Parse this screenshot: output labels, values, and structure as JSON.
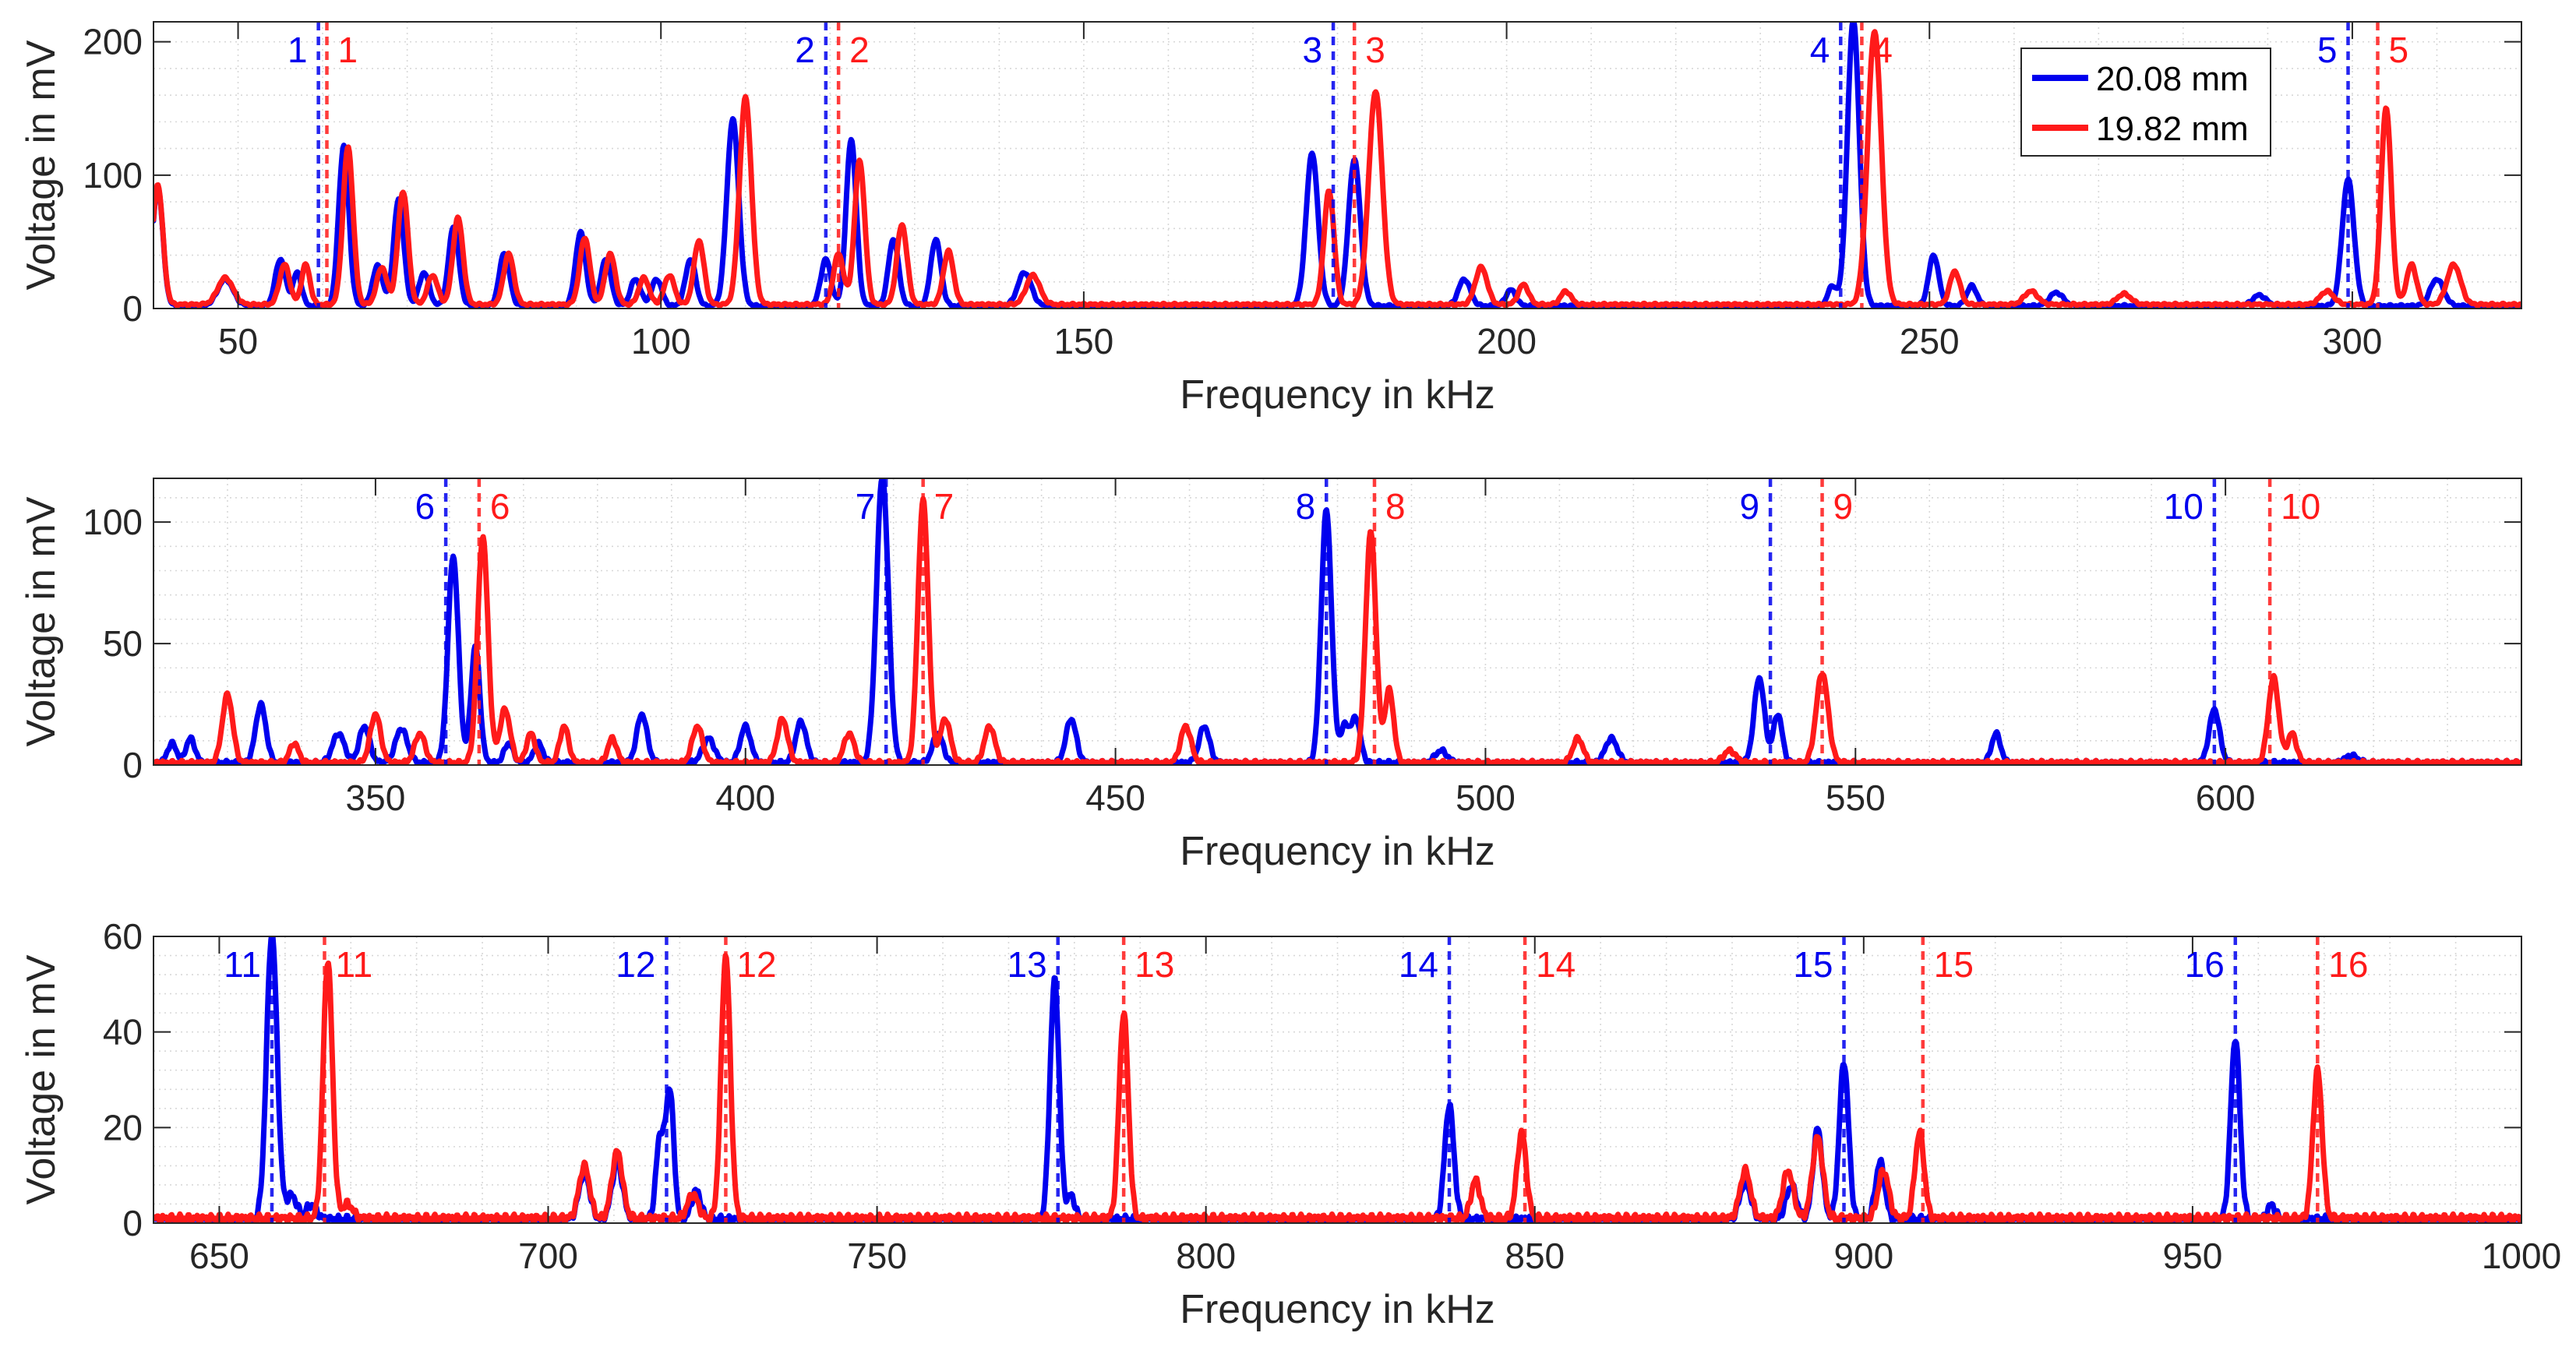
{
  "colors": {
    "blue": "#0000ee",
    "red": "#ff1a1a",
    "grid": "#d8d8d8",
    "axis": "#262626"
  },
  "legend": {
    "entries": [
      "20.08 mm",
      "19.82 mm"
    ]
  },
  "chart_data": [
    {
      "type": "line",
      "panel": 1,
      "xlabel": "Frequency in kHz",
      "ylabel": "Voltage in mV",
      "xlim": [
        40,
        320
      ],
      "ylim": [
        0,
        215
      ],
      "xticks": [
        50,
        100,
        150,
        200,
        250,
        300
      ],
      "xtick_labels": [
        "50",
        "100",
        "150",
        "200",
        "250",
        "300"
      ],
      "yticks": [
        0,
        100,
        200
      ],
      "ytick_labels": [
        "0",
        "100",
        "200"
      ],
      "grid": true,
      "legend": "top-right",
      "series": [
        {
          "name": "20.08 mm",
          "color": "blue",
          "baseline": 2,
          "peaks": [
            [
              40.5,
              90,
              0.6
            ],
            [
              48.5,
              20,
              0.9
            ],
            [
              55,
              35,
              0.6
            ],
            [
              57,
              25,
              0.5
            ],
            [
              62.5,
              120,
              0.6
            ],
            [
              66.5,
              30,
              0.6
            ],
            [
              69,
              80,
              0.6
            ],
            [
              72,
              25,
              0.6
            ],
            [
              75.5,
              60,
              0.6
            ],
            [
              81.5,
              40,
              0.6
            ],
            [
              90.5,
              55,
              0.6
            ],
            [
              93.5,
              35,
              0.6
            ],
            [
              97,
              20,
              0.6
            ],
            [
              99.5,
              20,
              0.6
            ],
            [
              103.5,
              35,
              0.6
            ],
            [
              108.5,
              140,
              0.7
            ],
            [
              119.5,
              35,
              0.6
            ],
            [
              122.5,
              125,
              0.6
            ],
            [
              127.5,
              50,
              0.6
            ],
            [
              132.5,
              50,
              0.6
            ],
            [
              143,
              25,
              0.8
            ],
            [
              177,
              115,
              0.7
            ],
            [
              182,
              110,
              0.7
            ],
            [
              195,
              20,
              0.7
            ],
            [
              200.5,
              12,
              0.6
            ],
            [
              238.5,
              15,
              0.5
            ],
            [
              241,
              215,
              0.7
            ],
            [
              250.5,
              38,
              0.6
            ],
            [
              255,
              15,
              0.6
            ],
            [
              265,
              10,
              0.8
            ],
            [
              289,
              8,
              0.8
            ],
            [
              299.5,
              95,
              0.7
            ],
            [
              310,
              20,
              0.8
            ]
          ]
        },
        {
          "name": "19.82 mm",
          "color": "red",
          "baseline": 3,
          "peaks": [
            [
              40.5,
              90,
              0.6
            ],
            [
              48.5,
              20,
              0.9
            ],
            [
              55.5,
              30,
              0.6
            ],
            [
              58,
              30,
              0.5
            ],
            [
              63,
              118,
              0.6
            ],
            [
              67,
              28,
              0.6
            ],
            [
              69.5,
              85,
              0.6
            ],
            [
              73,
              22,
              0.6
            ],
            [
              76,
              65,
              0.6
            ],
            [
              82,
              38,
              0.6
            ],
            [
              91,
              50,
              0.6
            ],
            [
              94,
              38,
              0.6
            ],
            [
              98,
              20,
              0.6
            ],
            [
              101,
              22,
              0.6
            ],
            [
              104.5,
              48,
              0.6
            ],
            [
              110,
              155,
              0.7
            ],
            [
              121,
              38,
              0.6
            ],
            [
              123.5,
              108,
              0.6
            ],
            [
              128.5,
              60,
              0.6
            ],
            [
              134,
              40,
              0.6
            ],
            [
              144,
              22,
              0.8
            ],
            [
              179,
              85,
              0.6
            ],
            [
              184.5,
              160,
              0.8
            ],
            [
              197,
              28,
              0.7
            ],
            [
              202,
              15,
              0.6
            ],
            [
              207,
              10,
              0.6
            ],
            [
              243.5,
              205,
              0.8
            ],
            [
              253,
              25,
              0.6
            ],
            [
              262,
              10,
              0.8
            ],
            [
              273,
              8,
              0.8
            ],
            [
              297,
              10,
              0.8
            ],
            [
              304,
              148,
              0.6
            ],
            [
              307,
              30,
              0.6
            ],
            [
              312,
              30,
              0.8
            ]
          ]
        }
      ],
      "markers": [
        {
          "label": "1",
          "color": "blue",
          "x": 59.5
        },
        {
          "label": "1",
          "color": "red",
          "x": 60.5
        },
        {
          "label": "2",
          "color": "blue",
          "x": 119.5
        },
        {
          "label": "2",
          "color": "red",
          "x": 121
        },
        {
          "label": "3",
          "color": "blue",
          "x": 179.5
        },
        {
          "label": "3",
          "color": "red",
          "x": 182
        },
        {
          "label": "4",
          "color": "blue",
          "x": 239.5
        },
        {
          "label": "4",
          "color": "red",
          "x": 242
        },
        {
          "label": "5",
          "color": "blue",
          "x": 299.5
        },
        {
          "label": "5",
          "color": "red",
          "x": 303
        }
      ]
    },
    {
      "type": "line",
      "panel": 2,
      "xlabel": "Frequency in kHz",
      "ylabel": "Voltage in mV",
      "xlim": [
        320,
        640
      ],
      "ylim": [
        0,
        118
      ],
      "xticks": [
        350,
        400,
        450,
        500,
        550,
        600
      ],
      "xtick_labels": [
        "350",
        "400",
        "450",
        "500",
        "550",
        "600"
      ],
      "yticks": [
        0,
        50,
        100
      ],
      "ytick_labels": [
        "0",
        "50",
        "100"
      ],
      "grid": true,
      "series": [
        {
          "name": "20.08 mm",
          "color": "blue",
          "baseline": 1,
          "peaks": [
            [
              322.5,
              8,
              0.6
            ],
            [
              325,
              10,
              0.6
            ],
            [
              334.5,
              24,
              0.7
            ],
            [
              345,
              12,
              0.8
            ],
            [
              348.5,
              15,
              0.7
            ],
            [
              353.5,
              14,
              0.8
            ],
            [
              360.5,
              85,
              0.7
            ],
            [
              363.5,
              48,
              0.6
            ],
            [
              368,
              8,
              0.6
            ],
            [
              372,
              8,
              0.6
            ],
            [
              386,
              20,
              0.7
            ],
            [
              395,
              10,
              0.8
            ],
            [
              400,
              15,
              0.7
            ],
            [
              407.5,
              17,
              0.7
            ],
            [
              418.5,
              118,
              0.8
            ],
            [
              426,
              12,
              0.7
            ],
            [
              444,
              18,
              0.7
            ],
            [
              462,
              15,
              0.7
            ],
            [
              478.5,
              104,
              0.7
            ],
            [
              481,
              15,
              0.6
            ],
            [
              482.5,
              18,
              0.6
            ],
            [
              494,
              5,
              0.8
            ],
            [
              517,
              10,
              0.8
            ],
            [
              537,
              35,
              0.7
            ],
            [
              539.5,
              20,
              0.6
            ],
            [
              569,
              12,
              0.6
            ],
            [
              598.5,
              22,
              0.7
            ],
            [
              617,
              3,
              0.8
            ]
          ]
        },
        {
          "name": "19.82 mm",
          "color": "red",
          "baseline": 1,
          "peaks": [
            [
              330,
              28,
              0.7
            ],
            [
              339,
              8,
              0.6
            ],
            [
              350,
              20,
              0.7
            ],
            [
              356,
              12,
              0.7
            ],
            [
              364.5,
              93,
              0.7
            ],
            [
              367.5,
              22,
              0.7
            ],
            [
              371,
              12,
              0.6
            ],
            [
              375.5,
              15,
              0.6
            ],
            [
              382,
              10,
              0.6
            ],
            [
              393.5,
              15,
              0.7
            ],
            [
              405,
              18,
              0.7
            ],
            [
              414,
              12,
              0.7
            ],
            [
              424,
              108,
              0.7
            ],
            [
              427,
              18,
              0.7
            ],
            [
              433,
              15,
              0.7
            ],
            [
              459.5,
              15,
              0.7
            ],
            [
              484.5,
              95,
              0.7
            ],
            [
              487,
              30,
              0.6
            ],
            [
              512.5,
              10,
              0.7
            ],
            [
              533,
              5,
              0.8
            ],
            [
              545.5,
              37,
              0.8
            ],
            [
              606.5,
              35,
              0.7
            ],
            [
              609,
              12,
              0.6
            ]
          ]
        }
      ],
      "markers": [
        {
          "label": "6",
          "color": "blue",
          "x": 359.5
        },
        {
          "label": "6",
          "color": "red",
          "x": 364
        },
        {
          "label": "7",
          "color": "blue",
          "x": 419
        },
        {
          "label": "7",
          "color": "red",
          "x": 424
        },
        {
          "label": "8",
          "color": "blue",
          "x": 478.5
        },
        {
          "label": "8",
          "color": "red",
          "x": 485
        },
        {
          "label": "9",
          "color": "blue",
          "x": 538.5
        },
        {
          "label": "9",
          "color": "red",
          "x": 545.5
        },
        {
          "label": "10",
          "color": "blue",
          "x": 598.5
        },
        {
          "label": "10",
          "color": "red",
          "x": 606
        }
      ]
    },
    {
      "type": "line",
      "panel": 3,
      "xlabel": "Frequency in kHz",
      "ylabel": "Voltage in mV",
      "xlim": [
        640,
        1000
      ],
      "ylim": [
        0,
        60
      ],
      "xticks": [
        650,
        700,
        750,
        800,
        850,
        900,
        950,
        1000
      ],
      "xtick_labels": [
        "650",
        "700",
        "750",
        "800",
        "850",
        "900",
        "950",
        "1000"
      ],
      "yticks": [
        0,
        20,
        40,
        60
      ],
      "ytick_labels": [
        "0",
        "20",
        "40",
        "60"
      ],
      "grid": true,
      "series": [
        {
          "name": "20.08 mm",
          "color": "blue",
          "baseline": 0.8,
          "peaks": [
            [
              658,
              60,
              0.8
            ],
            [
              661,
              5,
              0.8
            ],
            [
              664,
              3,
              0.8
            ],
            [
              705.5,
              10,
              0.8
            ],
            [
              710.5,
              12,
              0.8
            ],
            [
              717,
              17,
              0.6
            ],
            [
              718.5,
              27,
              0.6
            ],
            [
              722.5,
              6,
              0.7
            ],
            [
              777,
              50,
              0.7
            ],
            [
              779.5,
              5,
              0.6
            ],
            [
              837,
              24,
              0.7
            ],
            [
              882,
              8,
              0.8
            ],
            [
              889,
              7,
              0.8
            ],
            [
              893,
              19,
              0.7
            ],
            [
              897,
              33,
              0.7
            ],
            [
              902.5,
              12,
              0.7
            ],
            [
              956.5,
              38,
              0.7
            ],
            [
              962,
              3,
              0.6
            ]
          ]
        },
        {
          "name": "19.82 mm",
          "color": "red",
          "baseline": 1,
          "peaks": [
            [
              666.5,
              54,
              0.7
            ],
            [
              669.5,
              3,
              0.8
            ],
            [
              705.5,
              11,
              0.8
            ],
            [
              710.5,
              14,
              0.8
            ],
            [
              722,
              5,
              0.8
            ],
            [
              727,
              55,
              0.7
            ],
            [
              787.5,
              43,
              0.7
            ],
            [
              841,
              8,
              0.7
            ],
            [
              848,
              18,
              0.7
            ],
            [
              882,
              10,
              0.8
            ],
            [
              888.5,
              10,
              0.8
            ],
            [
              893,
              17,
              0.8
            ],
            [
              903,
              10,
              0.8
            ],
            [
              908.5,
              18,
              0.7
            ],
            [
              969,
              31,
              0.7
            ]
          ]
        }
      ],
      "markers": [
        {
          "label": "11",
          "color": "blue",
          "x": 658
        },
        {
          "label": "11",
          "color": "red",
          "x": 666
        },
        {
          "label": "12",
          "color": "blue",
          "x": 718
        },
        {
          "label": "12",
          "color": "red",
          "x": 727
        },
        {
          "label": "13",
          "color": "blue",
          "x": 777.5
        },
        {
          "label": "13",
          "color": "red",
          "x": 787.5
        },
        {
          "label": "14",
          "color": "blue",
          "x": 837
        },
        {
          "label": "14",
          "color": "red",
          "x": 848.5
        },
        {
          "label": "15",
          "color": "blue",
          "x": 897
        },
        {
          "label": "15",
          "color": "red",
          "x": 909
        },
        {
          "label": "16",
          "color": "blue",
          "x": 956.5
        },
        {
          "label": "16",
          "color": "red",
          "x": 969
        }
      ]
    }
  ]
}
